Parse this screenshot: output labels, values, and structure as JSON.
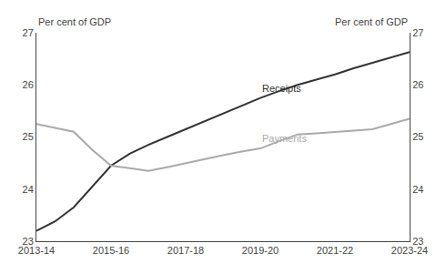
{
  "chart_data": {
    "type": "line",
    "x": [
      2013.5,
      2014.0,
      2014.5,
      2015.0,
      2015.5,
      2016.0,
      2016.5,
      2017.0,
      2017.5,
      2018.0,
      2018.5,
      2019.0,
      2019.5,
      2020.0,
      2020.5,
      2021.0,
      2021.5,
      2022.0,
      2022.5,
      2023.0,
      2023.5
    ],
    "series": [
      {
        "name": "Receipts",
        "color": "#333333",
        "values": [
          23.2,
          23.38,
          23.65,
          24.05,
          24.45,
          24.68,
          24.85,
          25.0,
          25.15,
          25.3,
          25.45,
          25.6,
          25.75,
          25.88,
          26.0,
          26.1,
          26.2,
          26.32,
          26.42,
          26.52,
          26.63
        ]
      },
      {
        "name": "Payments",
        "color": "#aaaaaa",
        "values": [
          25.25,
          25.18,
          25.1,
          24.75,
          24.45,
          24.4,
          24.35,
          24.42,
          24.5,
          24.57,
          24.65,
          24.72,
          24.78,
          24.92,
          25.05,
          25.07,
          25.1,
          25.12,
          25.15,
          25.25,
          25.35
        ]
      }
    ],
    "xlim": [
      2013.5,
      2023.5
    ],
    "xticks": [
      {
        "value": 2013.5,
        "label": "2013-14"
      },
      {
        "value": 2015.5,
        "label": "2015-16"
      },
      {
        "value": 2017.5,
        "label": "2017-18"
      },
      {
        "value": 2019.5,
        "label": "2019-20"
      },
      {
        "value": 2021.5,
        "label": "2021-22"
      },
      {
        "value": 2023.5,
        "label": "2023-24"
      }
    ],
    "ylim": [
      23,
      27
    ],
    "yticks": [
      23,
      24,
      25,
      26,
      27
    ],
    "y2lim": [
      23,
      27
    ],
    "y2ticks": [
      23,
      24,
      25,
      26,
      27
    ],
    "ylabel": "Per cent of GDP",
    "y2label": "Per cent of GDP",
    "grid": false
  }
}
